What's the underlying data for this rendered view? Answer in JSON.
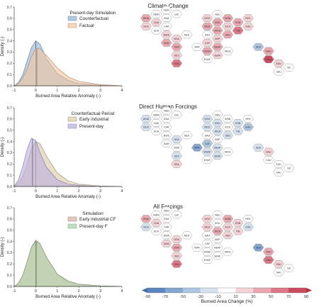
{
  "panels": [
    {
      "title": "Climate Change"
    },
    {
      "title": "Direct Human Forcings"
    },
    {
      "title": "All Forcings"
    }
  ],
  "chart_data": [
    {
      "type": "area",
      "title": "Climate Change",
      "xlabel": "Burned Area Relative Anomaly (-)",
      "ylabel": "Density (-)",
      "xlim": [
        -1,
        4
      ],
      "ylim": [
        0,
        0.7
      ],
      "xticks": [
        -1,
        0,
        1,
        2,
        3,
        4
      ],
      "yticks": [
        0.0,
        0.1,
        0.2,
        0.3,
        0.4,
        0.5,
        0.6,
        0.7
      ],
      "legend_title": "Present-day Simulation",
      "legend_position": "top-right",
      "series": [
        {
          "name": "Counterfactual",
          "color": "#8fb2d8",
          "x": [
            -1,
            -0.8,
            -0.6,
            -0.4,
            -0.2,
            0,
            0.2,
            0.5,
            1,
            1.5,
            2,
            3,
            4
          ],
          "values": [
            0.0,
            0.03,
            0.1,
            0.22,
            0.34,
            0.4,
            0.37,
            0.24,
            0.11,
            0.05,
            0.02,
            0.005,
            0.0
          ],
          "median": 0.0
        },
        {
          "name": "Factual",
          "color": "#f2c39b",
          "x": [
            -1,
            -0.8,
            -0.6,
            -0.4,
            -0.2,
            0,
            0.2,
            0.5,
            1,
            1.5,
            2,
            3,
            4
          ],
          "values": [
            0.0,
            0.02,
            0.07,
            0.15,
            0.26,
            0.33,
            0.33,
            0.27,
            0.16,
            0.08,
            0.04,
            0.01,
            0.0
          ],
          "median": 0.05
        }
      ]
    },
    {
      "type": "area",
      "title": "Direct Human Forcings",
      "xlabel": "Burned Area Relative Anomaly (-)",
      "ylabel": "Density (-)",
      "xlim": [
        -1,
        4
      ],
      "ylim": [
        0,
        0.7
      ],
      "xticks": [
        -1,
        0,
        1,
        2,
        3,
        4
      ],
      "yticks": [
        0.0,
        0.1,
        0.2,
        0.3,
        0.4,
        0.5,
        0.6,
        0.7
      ],
      "legend_title": "Counterfactual Period",
      "legend_position": "top-right",
      "series": [
        {
          "name": "Early industrial",
          "color": "#d8c9a3",
          "x": [
            -1,
            -0.8,
            -0.6,
            -0.4,
            -0.2,
            0,
            0.2,
            0.5,
            1,
            1.5,
            2,
            3,
            4
          ],
          "values": [
            0.0,
            0.03,
            0.09,
            0.2,
            0.33,
            0.4,
            0.38,
            0.27,
            0.12,
            0.05,
            0.02,
            0.005,
            0.0
          ],
          "median": 0.0
        },
        {
          "name": "Present-day",
          "color": "#b9aee0",
          "x": [
            -1,
            -0.8,
            -0.6,
            -0.4,
            -0.2,
            0,
            0.2,
            0.5,
            1,
            1.5,
            2,
            3,
            4
          ],
          "values": [
            0.0,
            0.06,
            0.18,
            0.33,
            0.43,
            0.41,
            0.3,
            0.17,
            0.06,
            0.02,
            0.01,
            0.0,
            0.0
          ],
          "median": -0.15
        }
      ]
    },
    {
      "type": "area",
      "title": "All Forcings",
      "xlabel": "Burned Area Relative Anomaly (-)",
      "ylabel": "Density (-)",
      "xlim": [
        -1,
        4
      ],
      "ylim": [
        0,
        0.7
      ],
      "xticks": [
        -1,
        0,
        1,
        2,
        3,
        4
      ],
      "yticks": [
        0.0,
        0.1,
        0.2,
        0.3,
        0.4,
        0.5,
        0.6,
        0.7
      ],
      "legend_title": "Simulation",
      "legend_position": "top-right",
      "series": [
        {
          "name": "Early industrial CF",
          "color": "#d9b0a6",
          "x": [
            -1,
            -0.8,
            -0.6,
            -0.4,
            -0.2,
            0,
            0.2,
            0.5,
            1,
            1.5,
            2,
            3,
            4
          ],
          "values": [
            0.0,
            0.03,
            0.1,
            0.22,
            0.35,
            0.41,
            0.38,
            0.26,
            0.11,
            0.04,
            0.02,
            0.005,
            0.0
          ],
          "median": 0.0
        },
        {
          "name": "Present-day F",
          "color": "#a8d3a4",
          "x": [
            -1,
            -0.8,
            -0.6,
            -0.4,
            -0.2,
            0,
            0.2,
            0.5,
            1,
            1.5,
            2,
            3,
            4
          ],
          "values": [
            0.0,
            0.03,
            0.1,
            0.22,
            0.35,
            0.4,
            0.38,
            0.26,
            0.11,
            0.05,
            0.02,
            0.005,
            0.0
          ],
          "median": 0.02
        }
      ]
    },
    {
      "type": "heatmap",
      "title": "Climate Change",
      "description_units": "Burned Area Change (%)",
      "regions": [
        {
          "label": "NWN",
          "v": 5
        },
        {
          "label": "NEN",
          "v": 0
        },
        {
          "label": "GIC",
          "v": 0
        },
        {
          "label": "WNA",
          "v": 35
        },
        {
          "label": "CNA",
          "v": 10
        },
        {
          "label": "ENA",
          "v": 5
        },
        {
          "label": "NCA",
          "v": 15
        },
        {
          "label": "SCA",
          "v": 5
        },
        {
          "label": "CAR",
          "v": 0
        },
        {
          "label": "NWS",
          "v": 10
        },
        {
          "label": "NSA",
          "v": 20
        },
        {
          "label": "NES",
          "v": 5
        },
        {
          "label": "SAM",
          "v": 30
        },
        {
          "label": "SWS",
          "v": 35
        },
        {
          "label": "SES",
          "v": 25
        },
        {
          "label": "SSA",
          "v": 55
        },
        {
          "label": "NEU",
          "v": 5
        },
        {
          "label": "WCE",
          "v": 20
        },
        {
          "label": "EEU",
          "v": 30
        },
        {
          "label": "WSB",
          "v": 40
        },
        {
          "label": "ESB",
          "v": 35
        },
        {
          "label": "RFE",
          "v": 10
        },
        {
          "label": "MED",
          "v": 35
        },
        {
          "label": "WCA",
          "v": 45
        },
        {
          "label": "ECA",
          "v": 25
        },
        {
          "label": "TIB",
          "v": 60
        },
        {
          "label": "EAS",
          "v": 10
        },
        {
          "label": "SAH",
          "v": 5
        },
        {
          "label": "ARP",
          "v": 15
        },
        {
          "label": "SAS",
          "v": 30
        },
        {
          "label": "WAF",
          "v": 5
        },
        {
          "label": "CAF",
          "v": 20
        },
        {
          "label": "NEAF",
          "v": 30
        },
        {
          "label": "WSAF",
          "v": 30
        },
        {
          "label": "SEAF",
          "v": 10
        },
        {
          "label": "ESAF",
          "v": 5
        },
        {
          "label": "MDG",
          "v": 0
        },
        {
          "label": "SEA",
          "v": -40
        },
        {
          "label": "NAU",
          "v": 30
        },
        {
          "label": "CAU",
          "v": 75
        },
        {
          "label": "EAU",
          "v": 25
        },
        {
          "label": "SAU",
          "v": 5
        },
        {
          "label": "NZ",
          "v": 0
        }
      ]
    },
    {
      "type": "heatmap",
      "title": "Direct Human Forcings",
      "regions": [
        {
          "label": "NWN",
          "v": 0
        },
        {
          "label": "NEN",
          "v": 0
        },
        {
          "label": "GIC",
          "v": 0
        },
        {
          "label": "WNA",
          "v": -15
        },
        {
          "label": "CNA",
          "v": 0
        },
        {
          "label": "ENA",
          "v": -10
        },
        {
          "label": "NCA",
          "v": -20
        },
        {
          "label": "SCA",
          "v": 0
        },
        {
          "label": "CAR",
          "v": 0
        },
        {
          "label": "NWS",
          "v": 0
        },
        {
          "label": "NSA",
          "v": -15
        },
        {
          "label": "NES",
          "v": 0
        },
        {
          "label": "SAM",
          "v": -5
        },
        {
          "label": "SWS",
          "v": 0
        },
        {
          "label": "SES",
          "v": -15
        },
        {
          "label": "SSA",
          "v": 20
        },
        {
          "label": "NEU",
          "v": -10
        },
        {
          "label": "WCE",
          "v": -15
        },
        {
          "label": "EEU",
          "v": -25
        },
        {
          "label": "WSB",
          "v": -10
        },
        {
          "label": "ESB",
          "v": -15
        },
        {
          "label": "RFE",
          "v": -5
        },
        {
          "label": "MED",
          "v": -25
        },
        {
          "label": "WCA",
          "v": -15
        },
        {
          "label": "ECA",
          "v": -10
        },
        {
          "label": "TIB",
          "v": -25
        },
        {
          "label": "EAS",
          "v": -35
        },
        {
          "label": "SAH",
          "v": -5
        },
        {
          "label": "ARP",
          "v": -10
        },
        {
          "label": "SAS",
          "v": -20
        },
        {
          "label": "WAF",
          "v": -55
        },
        {
          "label": "CAF",
          "v": -45
        },
        {
          "label": "NEAF",
          "v": -25
        },
        {
          "label": "WSAF",
          "v": -30
        },
        {
          "label": "SEAF",
          "v": -20
        },
        {
          "label": "ESAF",
          "v": 0
        },
        {
          "label": "MDG",
          "v": 5
        },
        {
          "label": "SEA",
          "v": -30
        },
        {
          "label": "NAU",
          "v": 25
        },
        {
          "label": "CAU",
          "v": 0
        },
        {
          "label": "EAU",
          "v": 0
        },
        {
          "label": "SAU",
          "v": 0
        },
        {
          "label": "NZ",
          "v": 0
        }
      ]
    },
    {
      "type": "heatmap",
      "title": "All Forcings",
      "regions": [
        {
          "label": "NWN",
          "v": 0
        },
        {
          "label": "NEN",
          "v": 0
        },
        {
          "label": "GIC",
          "v": 0
        },
        {
          "label": "WNA",
          "v": 30
        },
        {
          "label": "CNA",
          "v": 15
        },
        {
          "label": "ENA",
          "v": 5
        },
        {
          "label": "NCA",
          "v": -15
        },
        {
          "label": "SCA",
          "v": 5
        },
        {
          "label": "CAR",
          "v": 0
        },
        {
          "label": "NWS",
          "v": 5
        },
        {
          "label": "NSA",
          "v": 10
        },
        {
          "label": "NES",
          "v": 5
        },
        {
          "label": "SAM",
          "v": 25
        },
        {
          "label": "SWS",
          "v": 30
        },
        {
          "label": "SES",
          "v": 10
        },
        {
          "label": "SSA",
          "v": 60
        },
        {
          "label": "NEU",
          "v": 5
        },
        {
          "label": "WCE",
          "v": 10
        },
        {
          "label": "EEU",
          "v": 5
        },
        {
          "label": "WSB",
          "v": 30
        },
        {
          "label": "ESB",
          "v": 20
        },
        {
          "label": "RFE",
          "v": 5
        },
        {
          "label": "MED",
          "v": 10
        },
        {
          "label": "WCA",
          "v": 35
        },
        {
          "label": "ECA",
          "v": 20
        },
        {
          "label": "TIB",
          "v": 25
        },
        {
          "label": "EAS",
          "v": -25
        },
        {
          "label": "SAH",
          "v": 0
        },
        {
          "label": "ARP",
          "v": 5
        },
        {
          "label": "SAS",
          "v": 10
        },
        {
          "label": "WAF",
          "v": -10
        },
        {
          "label": "CAF",
          "v": -10
        },
        {
          "label": "NEAF",
          "v": 5
        },
        {
          "label": "WSAF",
          "v": 5
        },
        {
          "label": "SEAF",
          "v": 0
        },
        {
          "label": "ESAF",
          "v": 0
        },
        {
          "label": "MDG",
          "v": 0
        },
        {
          "label": "SEA",
          "v": -60
        },
        {
          "label": "NAU",
          "v": 40
        },
        {
          "label": "CAU",
          "v": 60
        },
        {
          "label": "EAU",
          "v": 20
        },
        {
          "label": "SAU",
          "v": 5
        },
        {
          "label": "NZ",
          "v": 0
        }
      ]
    }
  ],
  "colorbar": {
    "label": "Burned Area Change (%)",
    "ticks": [
      "-90",
      "-70",
      "-50",
      "-30",
      "-10",
      "10",
      "30",
      "50",
      "70",
      "90"
    ],
    "colors": [
      "#3b6aa8",
      "#5a86bd",
      "#82a6cf",
      "#adc5e0",
      "#d5e1ee",
      "#ffffff",
      "#f4d2d6",
      "#eaa7b0",
      "#dd7787",
      "#cc4a5f",
      "#b8283f"
    ]
  }
}
